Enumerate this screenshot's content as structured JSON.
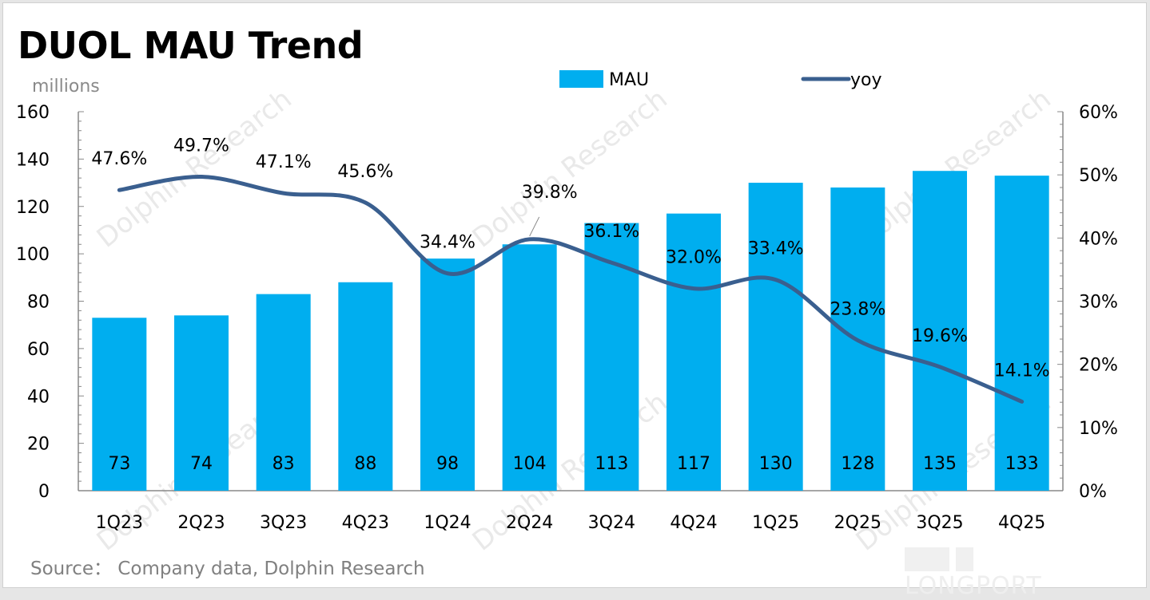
{
  "title": "DUOL MAU Trend",
  "unit_label": "millions",
  "source": "Source：  Company data, Dolphin Research",
  "watermark": "Dolphin Research",
  "logo_text": "LONGPORT",
  "colors": {
    "bar": "#00aeef",
    "line": "#3a5f8f"
  },
  "chart_data": {
    "type": "bar",
    "title": "DUOL MAU Trend",
    "categories": [
      "1Q23",
      "2Q23",
      "3Q23",
      "4Q23",
      "1Q24",
      "2Q24",
      "3Q24",
      "4Q24",
      "1Q25",
      "2Q25",
      "3Q25",
      "4Q25"
    ],
    "series": [
      {
        "name": "MAU",
        "type": "bar",
        "axis": "left",
        "values": [
          73,
          74,
          83,
          88,
          98,
          104,
          113,
          117,
          130,
          128,
          135,
          133
        ]
      },
      {
        "name": "yoy",
        "type": "line",
        "axis": "right",
        "values": [
          47.6,
          49.7,
          47.1,
          45.6,
          34.4,
          39.8,
          36.1,
          32.0,
          33.4,
          23.8,
          19.6,
          14.1
        ]
      }
    ],
    "yoy_labels": [
      "47.6%",
      "49.7%",
      "47.1%",
      "45.6%",
      "34.4%",
      "39.8%",
      "36.1%",
      "32.0%",
      "33.4%",
      "23.8%",
      "19.6%",
      "14.1%"
    ],
    "ylabel": "millions",
    "ylim": [
      0,
      160
    ],
    "yticks": [
      "0",
      "20",
      "40",
      "60",
      "80",
      "100",
      "120",
      "140",
      "160"
    ],
    "y2lim": [
      0,
      60
    ],
    "y2ticks": [
      "0%",
      "10%",
      "20%",
      "30%",
      "40%",
      "50%",
      "60%"
    ],
    "legend": [
      "MAU",
      "yoy"
    ],
    "legend_position": "top",
    "grid": false
  }
}
